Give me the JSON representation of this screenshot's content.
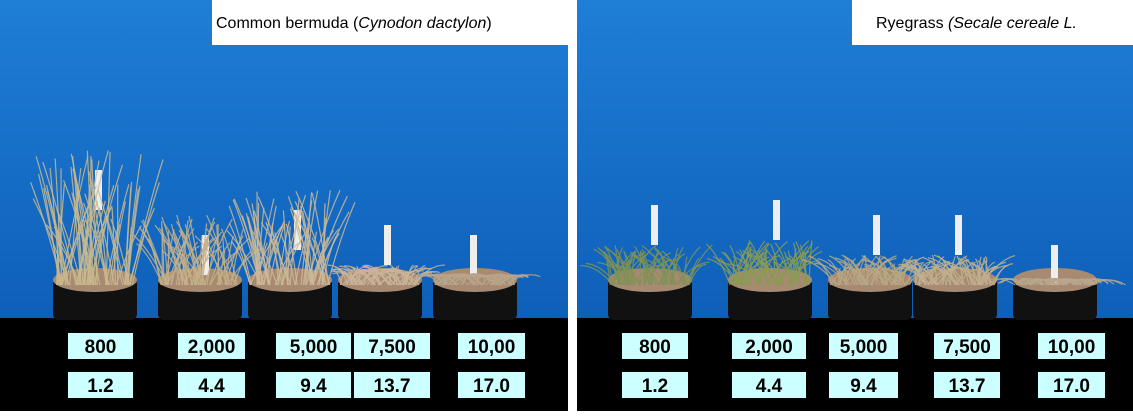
{
  "panels": [
    {
      "title": [
        "Common bermuda (",
        "Cynodon dactylon",
        ")"
      ],
      "rates": [
        "800",
        "2,000",
        "5,000",
        "7,500",
        "10,00"
      ],
      "values": [
        "1.2",
        "4.4",
        "9.4",
        "13.7",
        "17.0"
      ]
    },
    {
      "title": [
        "Ryegrass ",
        "(Secale cereale L."
      ],
      "rates": [
        "800",
        "2,000",
        "5,000",
        "7,500",
        "10,00"
      ],
      "values": [
        "1.2",
        "4.4",
        "9.4",
        "13.7",
        "17.0"
      ]
    }
  ]
}
